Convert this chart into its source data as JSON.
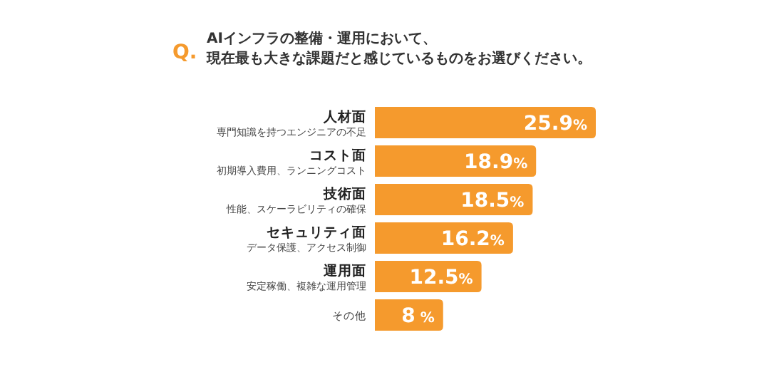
{
  "chart_data": {
    "type": "bar",
    "orientation": "horizontal",
    "title": "Q. AIインフラの整備・運用において、",
    "subtitle": "現在最も大きな課題だと感じているものをお選びください。",
    "categories": [
      "人材面",
      "コスト面",
      "技術面",
      "セキュリティ面",
      "運用面",
      "その他"
    ],
    "values": [
      25.9,
      18.9,
      18.5,
      16.2,
      12.5,
      8
    ],
    "value_labels": [
      "25.9%",
      "18.9%",
      "18.5%",
      "16.2%",
      "12.5%",
      "8 %"
    ],
    "annotations": [
      "専門知識を持つエンジニアの不足",
      "初期導入費用、ランニングコスト",
      "性能、スケーラビリティの確保",
      "データ保護、アクセス制御",
      "安定稼働、複雑な運用管理"
    ],
    "color": "#f59a2d"
  }
}
